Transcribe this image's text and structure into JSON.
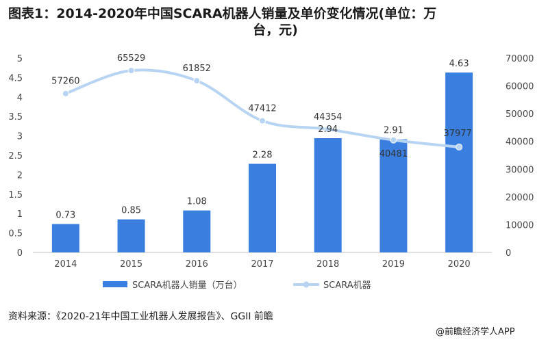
{
  "title_line1": "图表1：2014-2020年中国SCARA机器人销量及单价变化情况(单位：万",
  "title_line2": "台，元)",
  "source": "资料来源：《2020-21年中国工业机器人发展报告》、GGII 前瞻",
  "brand": "@前瞻经济学人APP",
  "colors": {
    "bar": "#3a7fe0",
    "line": "#b8d4f3",
    "marker": "#b8d4f3"
  },
  "chart_data": {
    "type": "bar+line",
    "categories": [
      "2014",
      "2015",
      "2016",
      "2017",
      "2018",
      "2019",
      "2020"
    ],
    "series": [
      {
        "name": "SCARA机器人销量（万台）",
        "type": "bar",
        "axis": "left",
        "values": [
          0.73,
          0.85,
          1.08,
          2.28,
          2.94,
          2.91,
          4.63
        ],
        "labels": [
          "0.73",
          "0.85",
          "1.08",
          "2.28",
          "2.94",
          "2.91",
          "4.63"
        ]
      },
      {
        "name": "SCARA机器人单价（元）",
        "legend_label": "SCARA机器",
        "type": "line",
        "axis": "right",
        "values": [
          57260,
          65529,
          61852,
          47412,
          44354,
          40481,
          37977
        ],
        "labels": [
          "57260",
          "65529",
          "61852",
          "47412",
          "44354",
          "40481",
          "37977"
        ]
      }
    ],
    "y_left": {
      "min": 0,
      "max": 5,
      "ticks": [
        "0",
        "0.5",
        "1",
        "1.5",
        "2",
        "2.5",
        "3",
        "3.5",
        "4",
        "4.5",
        "5"
      ]
    },
    "y_right": {
      "min": 0,
      "max": 70000,
      "ticks": [
        "0",
        "10000",
        "20000",
        "30000",
        "40000",
        "50000",
        "60000",
        "70000"
      ]
    },
    "legend_position": "bottom"
  }
}
